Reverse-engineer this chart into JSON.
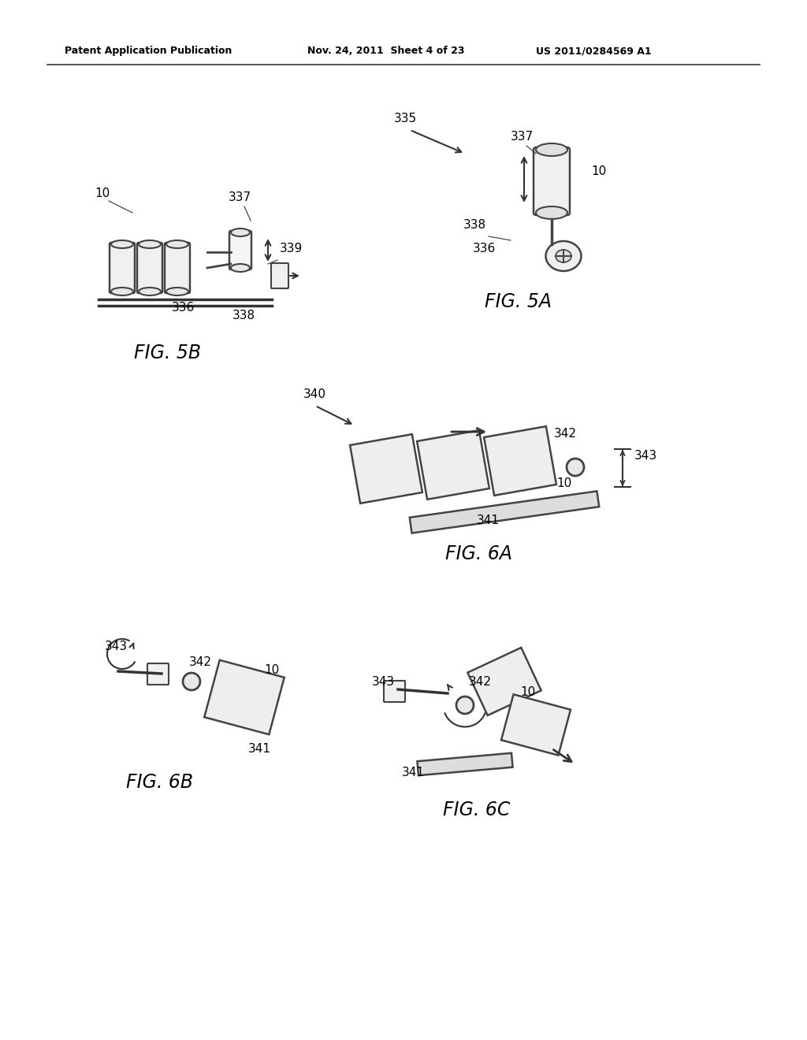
{
  "bg_color": "#ffffff",
  "header_left": "Patent Application Publication",
  "header_mid": "Nov. 24, 2011  Sheet 4 of 23",
  "header_right": "US 2011/0284569 A1",
  "fig5a_label": "FIG. 5A",
  "fig5b_label": "FIG. 5B",
  "fig6a_label": "FIG. 6A",
  "fig6b_label": "FIG. 6B",
  "fig6c_label": "FIG. 6C",
  "line_color": "#333333",
  "text_color": "#000000"
}
